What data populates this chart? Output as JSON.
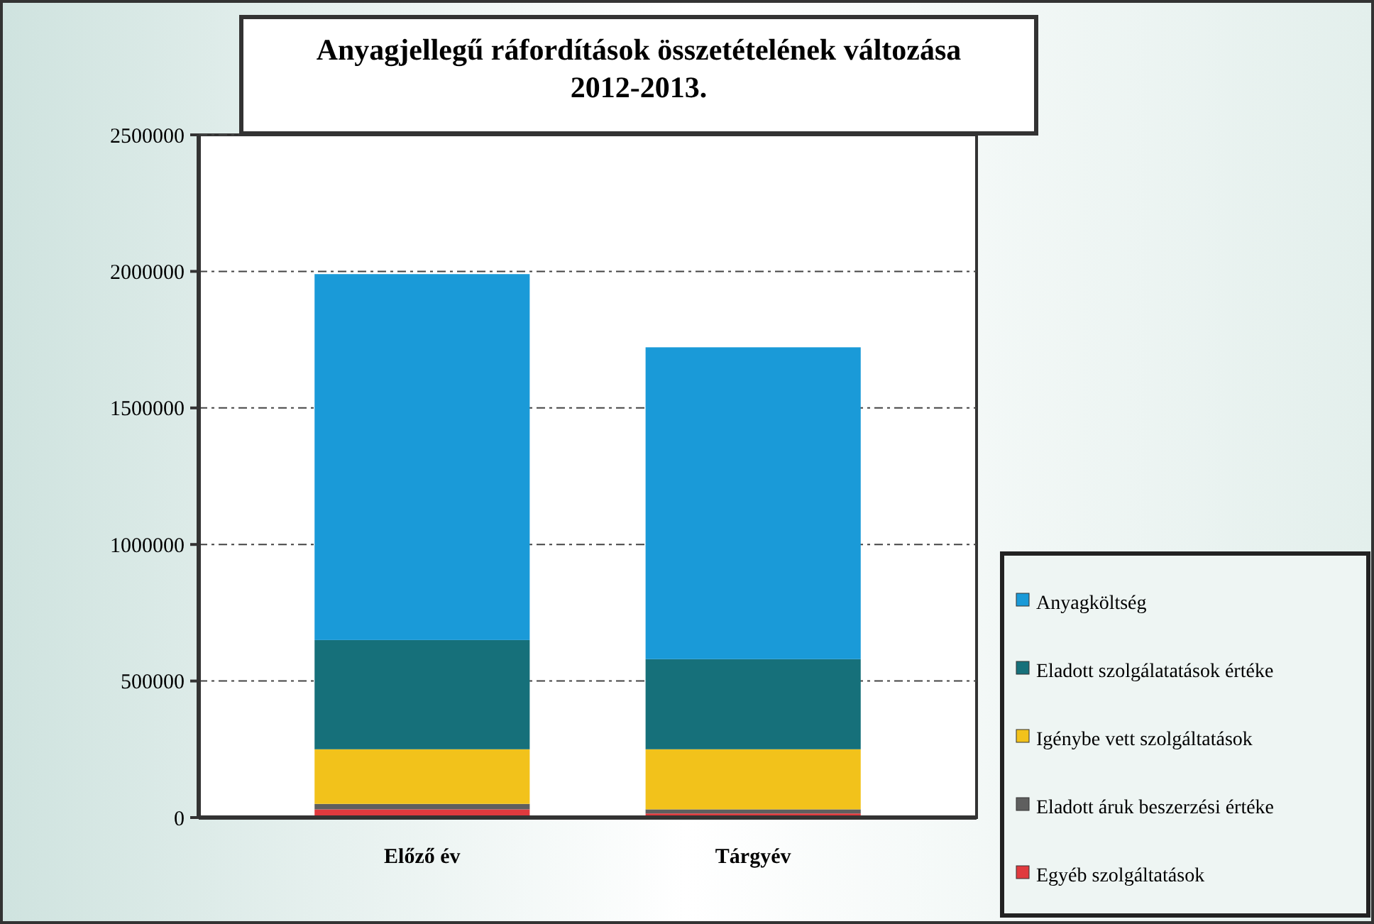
{
  "chart_data": {
    "type": "bar",
    "title": "Anyagjellegű ráfordítások összetételének változása 2012-2013.",
    "categories": [
      "Előző év",
      "Tárgyév"
    ],
    "stacked": true,
    "series": [
      {
        "name": "Egyéb szolgáltatások",
        "color": "#e03a3e",
        "values": [
          30000,
          15000
        ]
      },
      {
        "name": "Eladott áruk beszerzési értéke",
        "color": "#5f5f5f",
        "values": [
          20000,
          15000
        ]
      },
      {
        "name": "Igénybe vett szolgáltatások",
        "color": "#f2c21b",
        "values": [
          200000,
          220000
        ]
      },
      {
        "name": "Eladott szolgálatatások értéke",
        "color": "#16707a",
        "values": [
          400000,
          330000
        ]
      },
      {
        "name": "Anyagköltség",
        "color": "#1a9ad8",
        "values": [
          1340000,
          1142000
        ]
      }
    ],
    "ylim": [
      0,
      2500000
    ],
    "yticks": [
      0,
      500000,
      1000000,
      1500000,
      2000000,
      2500000
    ],
    "grid": "y",
    "legend": "bottom right"
  }
}
